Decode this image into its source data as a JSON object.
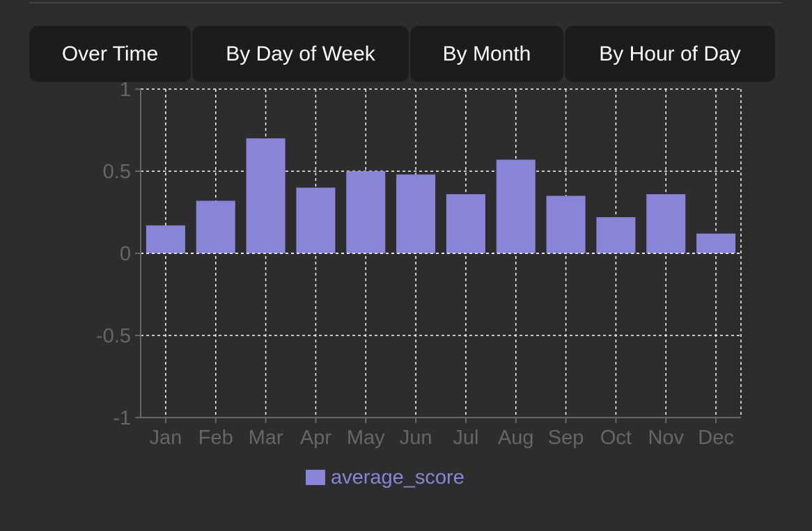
{
  "tabs": [
    {
      "label": "Over Time"
    },
    {
      "label": "By Day of Week"
    },
    {
      "label": "By Month"
    },
    {
      "label": "By Hour of Day"
    }
  ],
  "colors": {
    "background": "#2d2d2d",
    "tab_background": "#1c1c1c",
    "tab_text": "#ffffff",
    "bar": "#8884d8",
    "axis": "#666666",
    "tick_text": "#666666",
    "grid": "#ffffff"
  },
  "chart_data": {
    "type": "bar",
    "categories": [
      "Jan",
      "Feb",
      "Mar",
      "Apr",
      "May",
      "Jun",
      "Jul",
      "Aug",
      "Sep",
      "Oct",
      "Nov",
      "Dec"
    ],
    "series": [
      {
        "name": "average_score",
        "values": [
          0.17,
          0.32,
          0.7,
          0.4,
          0.5,
          0.48,
          0.36,
          0.57,
          0.35,
          0.22,
          0.36,
          0.12
        ]
      }
    ],
    "yticks": [
      1,
      0.5,
      0,
      -0.5,
      -1
    ],
    "ytick_labels": [
      "1",
      "0.5",
      "0",
      "-0.5",
      "-1"
    ],
    "ylim": [
      -1,
      1
    ],
    "grid": true,
    "legend": "bottom-center"
  }
}
